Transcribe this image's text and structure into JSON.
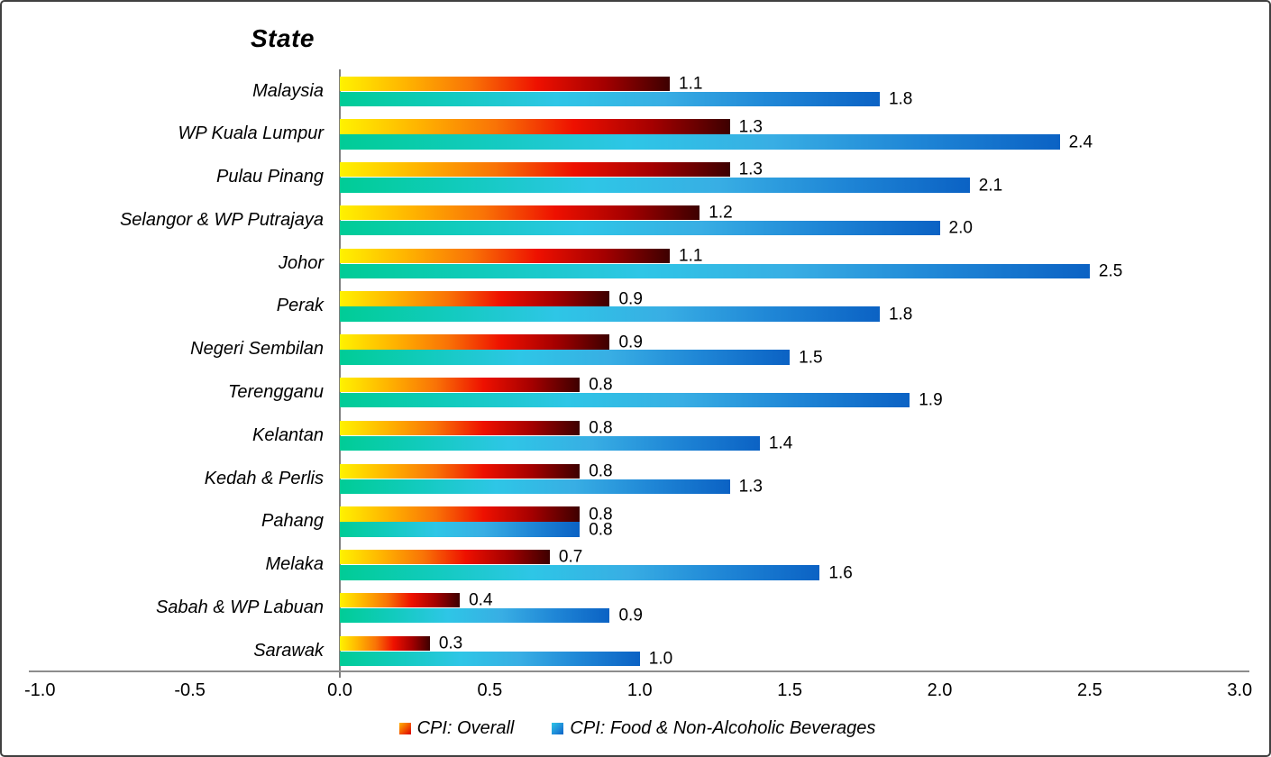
{
  "chart_data": {
    "type": "bar",
    "orientation": "horizontal",
    "title": "State",
    "categories": [
      "Malaysia",
      "WP Kuala Lumpur",
      "Pulau Pinang",
      "Selangor & WP Putrajaya",
      "Johor",
      "Perak",
      "Negeri Sembilan",
      "Terengganu",
      "Kelantan",
      "Kedah & Perlis",
      "Pahang",
      "Melaka",
      "Sabah & WP Labuan",
      "Sarawak"
    ],
    "series": [
      {
        "name": "CPI: Overall",
        "values": [
          1.1,
          1.3,
          1.3,
          1.2,
          1.1,
          0.9,
          0.9,
          0.8,
          0.8,
          0.8,
          0.8,
          0.7,
          0.4,
          0.3
        ],
        "gradient": [
          "#FFF200",
          "#FFB400",
          "#F97306",
          "#EE1000",
          "#A50000",
          "#3D0000"
        ]
      },
      {
        "name": "CPI: Food & Non-Alcoholic Beverages",
        "values": [
          1.8,
          2.4,
          2.1,
          2.0,
          2.5,
          1.8,
          1.5,
          1.9,
          1.4,
          1.3,
          0.8,
          1.6,
          0.9,
          1.0
        ],
        "gradient": [
          "#00CC96",
          "#12CBBE",
          "#2EC6E6",
          "#38AEE4",
          "#1F86D6",
          "#0B62C4"
        ]
      }
    ],
    "xlim": [
      -1.0,
      3.0
    ],
    "x_ticks": [
      "-1.0",
      "-0.5",
      "0.0",
      "0.5",
      "1.0",
      "1.5",
      "2.0",
      "2.5",
      "3.0"
    ],
    "value_labels_shown": true,
    "value_label_decimals": 1,
    "grid": "off",
    "legend_position": "bottom-center",
    "axis_line_color": "#8c8c8c",
    "zero_line_color": "#7f7f7f",
    "text_color": "#000000",
    "background_color": "#ffffff"
  }
}
